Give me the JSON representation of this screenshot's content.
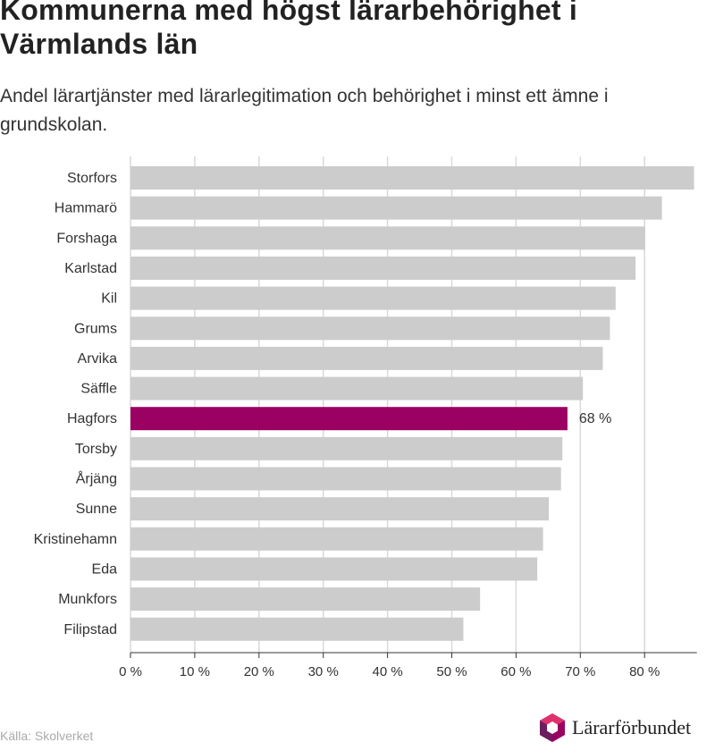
{
  "chart_data": {
    "type": "bar",
    "orientation": "horizontal",
    "title": "Kommunerna med högst lärarbehörighet i Värmlands län",
    "subtitle": "Andel lärartjänster med lärarlegitimation och behörighet i minst ett ämne i grundskolan.",
    "categories": [
      "Storfors",
      "Hammarö",
      "Forshaga",
      "Karlstad",
      "Kil",
      "Grums",
      "Arvika",
      "Säffle",
      "Hagfors",
      "Torsby",
      "Årjäng",
      "Sunne",
      "Kristinehamn",
      "Eda",
      "Munkfors",
      "Filipstad"
    ],
    "values": [
      87.7,
      82.7,
      80.1,
      78.6,
      75.5,
      74.6,
      73.5,
      70.4,
      68,
      67.2,
      67.0,
      65.1,
      64.2,
      63.3,
      54.4,
      51.8
    ],
    "highlight": {
      "category": "Hagfors",
      "label": "68 %"
    },
    "xlim": [
      0,
      88
    ],
    "ticks": [
      0,
      10,
      20,
      30,
      40,
      50,
      60,
      70,
      80
    ],
    "tick_labels": [
      "0 %",
      "10 %",
      "20 %",
      "30 %",
      "40 %",
      "50 %",
      "60 %",
      "70 %",
      "80 %"
    ],
    "grid": true,
    "colors": {
      "bar": "#cccccc",
      "highlight": "#9b0063",
      "grid": "#d9d9d9"
    }
  },
  "source": "Källa: Skolverket",
  "brand": {
    "name": "Lärarförbundet",
    "logo_icon": "hexagon-logo-icon",
    "logo_colors": [
      "#e0316e",
      "#9b0063",
      "#6b1f5e"
    ]
  }
}
